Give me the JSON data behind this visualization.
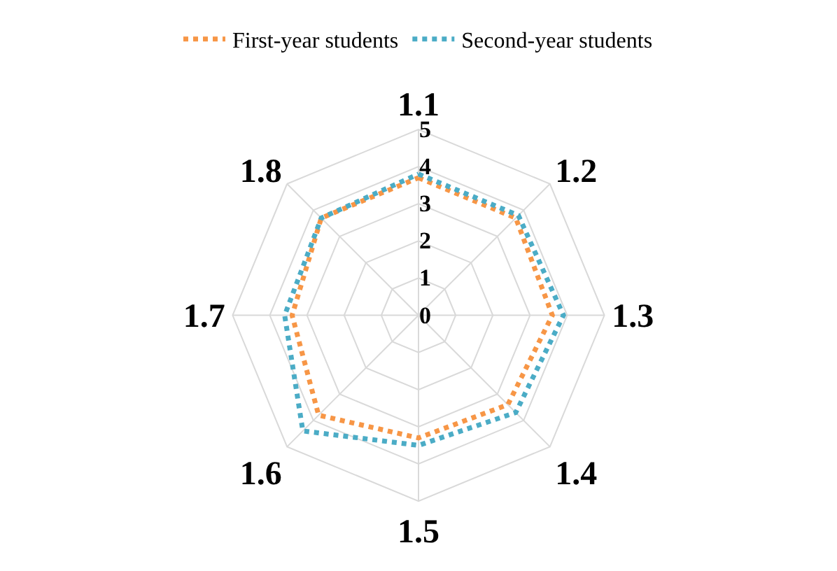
{
  "chart_data": {
    "type": "radar",
    "categories": [
      "1.1",
      "1.2",
      "1.3",
      "1.4",
      "1.5",
      "1.6",
      "1.7",
      "1.8"
    ],
    "series": [
      {
        "name": "First-year students",
        "color": "#f79646",
        "values": [
          3.7,
          3.7,
          3.6,
          3.4,
          3.3,
          3.8,
          3.4,
          3.7
        ]
      },
      {
        "name": "Second-year students",
        "color": "#4bacc6",
        "values": [
          3.8,
          3.8,
          3.9,
          3.7,
          3.5,
          4.4,
          3.6,
          3.7
        ]
      }
    ],
    "ylim": [
      0,
      5
    ],
    "yticks": [
      0,
      1,
      2,
      3,
      4,
      5
    ],
    "legend": "top",
    "line_style": "dotted",
    "marker": "none",
    "grid": true
  }
}
